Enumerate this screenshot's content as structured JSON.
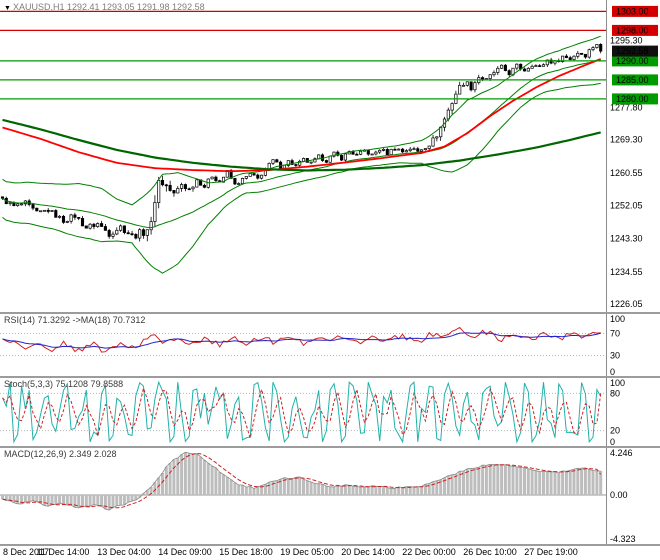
{
  "header": {
    "symbol_arrow": "▼",
    "title": "XAUUSD,H1 1292.41 1293.05 1291.98 1292.58"
  },
  "panels": {
    "rsi": {
      "title": "RSI(14) 71.3292 ->MA(18) 70.7312",
      "scale": [
        "100",
        "70",
        "30",
        "0"
      ]
    },
    "stoch": {
      "title": "Stoch(5,3,3) 75.1208 79.8588",
      "scale": [
        "100",
        "80",
        "20",
        "0"
      ]
    },
    "macd": {
      "title": "MACD(12,26,9) 2.349 2.028",
      "scale": [
        "4.246",
        "0.00",
        "-4.323"
      ]
    }
  },
  "chart_data": {
    "type": "candlestick",
    "symbol": "XAUUSD",
    "timeframe": "H1",
    "ohlc_current": {
      "open": 1292.41,
      "high": 1293.05,
      "low": 1291.98,
      "close": 1292.58
    },
    "bars": 158,
    "price_range": [
      1224,
      1306
    ],
    "price_scale_ticks": [
      "1295.30",
      "1277.80",
      "1269.30",
      "1260.55",
      "1252.05",
      "1243.30",
      "1234.55",
      "1226.05"
    ],
    "price_tags": [
      {
        "label": "1303.00",
        "value": 1303.0,
        "type": "resistance"
      },
      {
        "label": "1298.00",
        "value": 1298.0,
        "type": "resistance"
      },
      {
        "label": "1290.00",
        "value": 1290.0,
        "type": "support"
      },
      {
        "label": "1285.00",
        "value": 1285.0,
        "type": "support"
      },
      {
        "label": "1280.00",
        "value": 1280.0,
        "type": "support"
      },
      {
        "label": "1292.58",
        "value": 1292.58,
        "type": "current"
      }
    ],
    "levels": {
      "resistance": [
        1303.0,
        1298.0
      ],
      "support": [
        1290.0,
        1285.0,
        1280.0
      ],
      "current": 1292.58
    },
    "close_anchors": [
      [
        0,
        1253.5
      ],
      [
        3,
        1251.8
      ],
      [
        6,
        1252.6
      ],
      [
        9,
        1250.0
      ],
      [
        12,
        1250.8
      ],
      [
        16,
        1248.0
      ],
      [
        19,
        1249.3
      ],
      [
        22,
        1246.2
      ],
      [
        25,
        1247.2
      ],
      [
        28,
        1244.6
      ],
      [
        31,
        1246.4
      ],
      [
        34,
        1244.0
      ],
      [
        37,
        1245.0
      ],
      [
        39,
        1247.0
      ],
      [
        40,
        1253.5
      ],
      [
        41,
        1258.5
      ],
      [
        43,
        1257.2
      ],
      [
        45,
        1254.8
      ],
      [
        47,
        1257.6
      ],
      [
        49,
        1256.2
      ],
      [
        51,
        1258.8
      ],
      [
        53,
        1257.0
      ],
      [
        55,
        1259.8
      ],
      [
        57,
        1258.2
      ],
      [
        59,
        1260.8
      ],
      [
        61,
        1257.4
      ],
      [
        63,
        1258.8
      ],
      [
        65,
        1260.2
      ],
      [
        67,
        1259.0
      ],
      [
        69,
        1261.6
      ],
      [
        71,
        1263.8
      ],
      [
        73,
        1262.2
      ],
      [
        75,
        1263.6
      ],
      [
        77,
        1262.4
      ],
      [
        79,
        1264.0
      ],
      [
        81,
        1263.0
      ],
      [
        83,
        1264.8
      ],
      [
        85,
        1263.8
      ],
      [
        87,
        1265.6
      ],
      [
        89,
        1264.4
      ],
      [
        91,
        1266.2
      ],
      [
        93,
        1265.2
      ],
      [
        95,
        1266.4
      ],
      [
        97,
        1265.2
      ],
      [
        99,
        1266.8
      ],
      [
        101,
        1265.8
      ],
      [
        103,
        1267.2
      ],
      [
        105,
        1266.2
      ],
      [
        107,
        1267.0
      ],
      [
        109,
        1266.2
      ],
      [
        111,
        1267.6
      ],
      [
        113,
        1269.0
      ],
      [
        115,
        1272.5
      ],
      [
        117,
        1277.0
      ],
      [
        119,
        1281.5
      ],
      [
        121,
        1284.5
      ],
      [
        123,
        1283.2
      ],
      [
        125,
        1285.8
      ],
      [
        127,
        1284.8
      ],
      [
        129,
        1287.0
      ],
      [
        131,
        1288.2
      ],
      [
        133,
        1286.8
      ],
      [
        135,
        1288.6
      ],
      [
        137,
        1287.6
      ],
      [
        139,
        1289.2
      ],
      [
        141,
        1288.2
      ],
      [
        143,
        1290.2
      ],
      [
        145,
        1289.6
      ],
      [
        147,
        1291.2
      ],
      [
        149,
        1290.6
      ],
      [
        151,
        1292.2
      ],
      [
        153,
        1291.6
      ],
      [
        155,
        1293.8
      ],
      [
        156,
        1294.6
      ],
      [
        157,
        1292.58
      ]
    ],
    "volatility_anchors": [
      [
        0,
        1.3
      ],
      [
        14,
        1.5
      ],
      [
        26,
        1.8
      ],
      [
        34,
        1.8
      ],
      [
        38,
        4.5
      ],
      [
        41,
        6.0
      ],
      [
        44,
        3.0
      ],
      [
        48,
        2.0
      ],
      [
        52,
        1.4
      ],
      [
        62,
        1.1
      ],
      [
        78,
        1.1
      ],
      [
        94,
        1.1
      ],
      [
        110,
        1.4
      ],
      [
        114,
        2.6
      ],
      [
        120,
        2.4
      ],
      [
        126,
        1.7
      ],
      [
        134,
        1.4
      ],
      [
        150,
        1.4
      ],
      [
        157,
        1.6
      ]
    ],
    "ma_red_anchors": [
      [
        0,
        1272.5
      ],
      [
        10,
        1269.5
      ],
      [
        20,
        1266.0
      ],
      [
        30,
        1263.2
      ],
      [
        40,
        1261.8
      ],
      [
        50,
        1261.3
      ],
      [
        60,
        1261.0
      ],
      [
        70,
        1261.3
      ],
      [
        80,
        1262.2
      ],
      [
        90,
        1263.3
      ],
      [
        100,
        1264.5
      ],
      [
        110,
        1265.8
      ],
      [
        116,
        1267.5
      ],
      [
        122,
        1271.0
      ],
      [
        128,
        1275.5
      ],
      [
        134,
        1279.5
      ],
      [
        140,
        1283.0
      ],
      [
        146,
        1286.0
      ],
      [
        152,
        1288.5
      ],
      [
        157,
        1290.5
      ]
    ],
    "ma_green_anchors": [
      [
        0,
        1274.5
      ],
      [
        10,
        1272.0
      ],
      [
        20,
        1269.2
      ],
      [
        30,
        1266.6
      ],
      [
        40,
        1264.6
      ],
      [
        50,
        1263.2
      ],
      [
        60,
        1262.2
      ],
      [
        70,
        1261.5
      ],
      [
        80,
        1261.2
      ],
      [
        90,
        1261.4
      ],
      [
        100,
        1261.9
      ],
      [
        110,
        1262.6
      ],
      [
        120,
        1263.8
      ],
      [
        130,
        1265.4
      ],
      [
        140,
        1267.2
      ],
      [
        148,
        1269.0
      ],
      [
        157,
        1271.2
      ]
    ],
    "bb_dev_anchors": [
      [
        0,
        5.0
      ],
      [
        8,
        5.5
      ],
      [
        14,
        6.0
      ],
      [
        20,
        7.0
      ],
      [
        26,
        7.0
      ],
      [
        30,
        5.5
      ],
      [
        34,
        5.0
      ],
      [
        38,
        9.0
      ],
      [
        42,
        13.0
      ],
      [
        46,
        12.0
      ],
      [
        50,
        9.0
      ],
      [
        54,
        5.5
      ],
      [
        58,
        3.5
      ],
      [
        64,
        2.6
      ],
      [
        72,
        2.8
      ],
      [
        80,
        2.5
      ],
      [
        88,
        2.4
      ],
      [
        96,
        2.2
      ],
      [
        104,
        2.3
      ],
      [
        110,
        3.0
      ],
      [
        114,
        5.0
      ],
      [
        118,
        7.5
      ],
      [
        122,
        8.5
      ],
      [
        126,
        7.5
      ],
      [
        130,
        6.0
      ],
      [
        136,
        5.0
      ],
      [
        142,
        4.8
      ],
      [
        148,
        5.2
      ],
      [
        157,
        6.2
      ]
    ],
    "rsi": {
      "current": 71.3292,
      "ma_current": 70.7312,
      "range": [
        0,
        100
      ],
      "levels": [
        30,
        70
      ],
      "base_anchors": [
        [
          0,
          56
        ],
        [
          6,
          50
        ],
        [
          12,
          47
        ],
        [
          18,
          46
        ],
        [
          24,
          44
        ],
        [
          30,
          46
        ],
        [
          36,
          50
        ],
        [
          40,
          62
        ],
        [
          44,
          58
        ],
        [
          48,
          57
        ],
        [
          52,
          55
        ],
        [
          56,
          57
        ],
        [
          60,
          54
        ],
        [
          64,
          57
        ],
        [
          68,
          58
        ],
        [
          72,
          61
        ],
        [
          76,
          57
        ],
        [
          80,
          59
        ],
        [
          84,
          60
        ],
        [
          88,
          61
        ],
        [
          92,
          59
        ],
        [
          96,
          60
        ],
        [
          100,
          59
        ],
        [
          104,
          61
        ],
        [
          108,
          59
        ],
        [
          112,
          62
        ],
        [
          116,
          68
        ],
        [
          120,
          72
        ],
        [
          124,
          66
        ],
        [
          128,
          67
        ],
        [
          132,
          64
        ],
        [
          136,
          65
        ],
        [
          140,
          64
        ],
        [
          144,
          66
        ],
        [
          148,
          65
        ],
        [
          152,
          68
        ],
        [
          157,
          71
        ]
      ]
    },
    "stoch": {
      "current": 75.1208,
      "signal_current": 79.8588,
      "range": [
        0,
        100
      ],
      "levels": [
        20,
        80
      ]
    },
    "macd": {
      "current": 2.349,
      "signal_current": 2.028,
      "range": [
        -4.323,
        4.246
      ],
      "anchors": [
        [
          0,
          -0.4
        ],
        [
          4,
          -0.9
        ],
        [
          8,
          -0.6
        ],
        [
          12,
          -1.1
        ],
        [
          16,
          -0.8
        ],
        [
          20,
          -1.3
        ],
        [
          24,
          -1.0
        ],
        [
          28,
          -1.4
        ],
        [
          32,
          -0.9
        ],
        [
          36,
          -0.3
        ],
        [
          40,
          1.2
        ],
        [
          44,
          3.2
        ],
        [
          48,
          4.2
        ],
        [
          51,
          4.0
        ],
        [
          54,
          3.2
        ],
        [
          58,
          2.0
        ],
        [
          62,
          1.0
        ],
        [
          66,
          0.7
        ],
        [
          70,
          1.2
        ],
        [
          74,
          1.6
        ],
        [
          78,
          1.7
        ],
        [
          82,
          1.2
        ],
        [
          86,
          0.8
        ],
        [
          90,
          1.0
        ],
        [
          94,
          0.8
        ],
        [
          98,
          0.9
        ],
        [
          102,
          0.7
        ],
        [
          106,
          0.8
        ],
        [
          110,
          0.9
        ],
        [
          114,
          1.4
        ],
        [
          118,
          2.0
        ],
        [
          122,
          2.5
        ],
        [
          126,
          2.9
        ],
        [
          130,
          3.0
        ],
        [
          134,
          2.8
        ],
        [
          138,
          2.5
        ],
        [
          142,
          2.3
        ],
        [
          146,
          2.2
        ],
        [
          150,
          2.5
        ],
        [
          153,
          2.6
        ],
        [
          157,
          2.35
        ]
      ]
    },
    "x_labels": [
      "8 Dec 2017",
      "11 Dec 14:00",
      "13 Dec 04:00",
      "14 Dec 09:00",
      "15 Dec 18:00",
      "19 Dec 05:00",
      "20 Dec 14:00",
      "22 Dec 00:00",
      "26 Dec 10:00",
      "27 Dec 19:00"
    ],
    "x_label_bars": [
      0,
      16,
      32,
      48,
      64,
      80,
      96,
      112,
      128,
      144
    ],
    "colors": {
      "candle_up": "#ffffff",
      "candle_down": "#000000",
      "candle_border": "#000000",
      "bollinger": "#008000",
      "ma_fast": "#ff0000",
      "ma_slow": "#006600",
      "resistance": "#d40000",
      "support": "#009b00",
      "current_tag": "#101010",
      "rsi_main": "#cc2222",
      "rsi_ma": "#2222cc",
      "stoch_main": "#20b2aa",
      "stoch_signal": "#cc2222",
      "macd_hist": "#bdbdbd",
      "macd_outline": "#8a8a8a",
      "macd_signal": "#cc2222"
    }
  }
}
